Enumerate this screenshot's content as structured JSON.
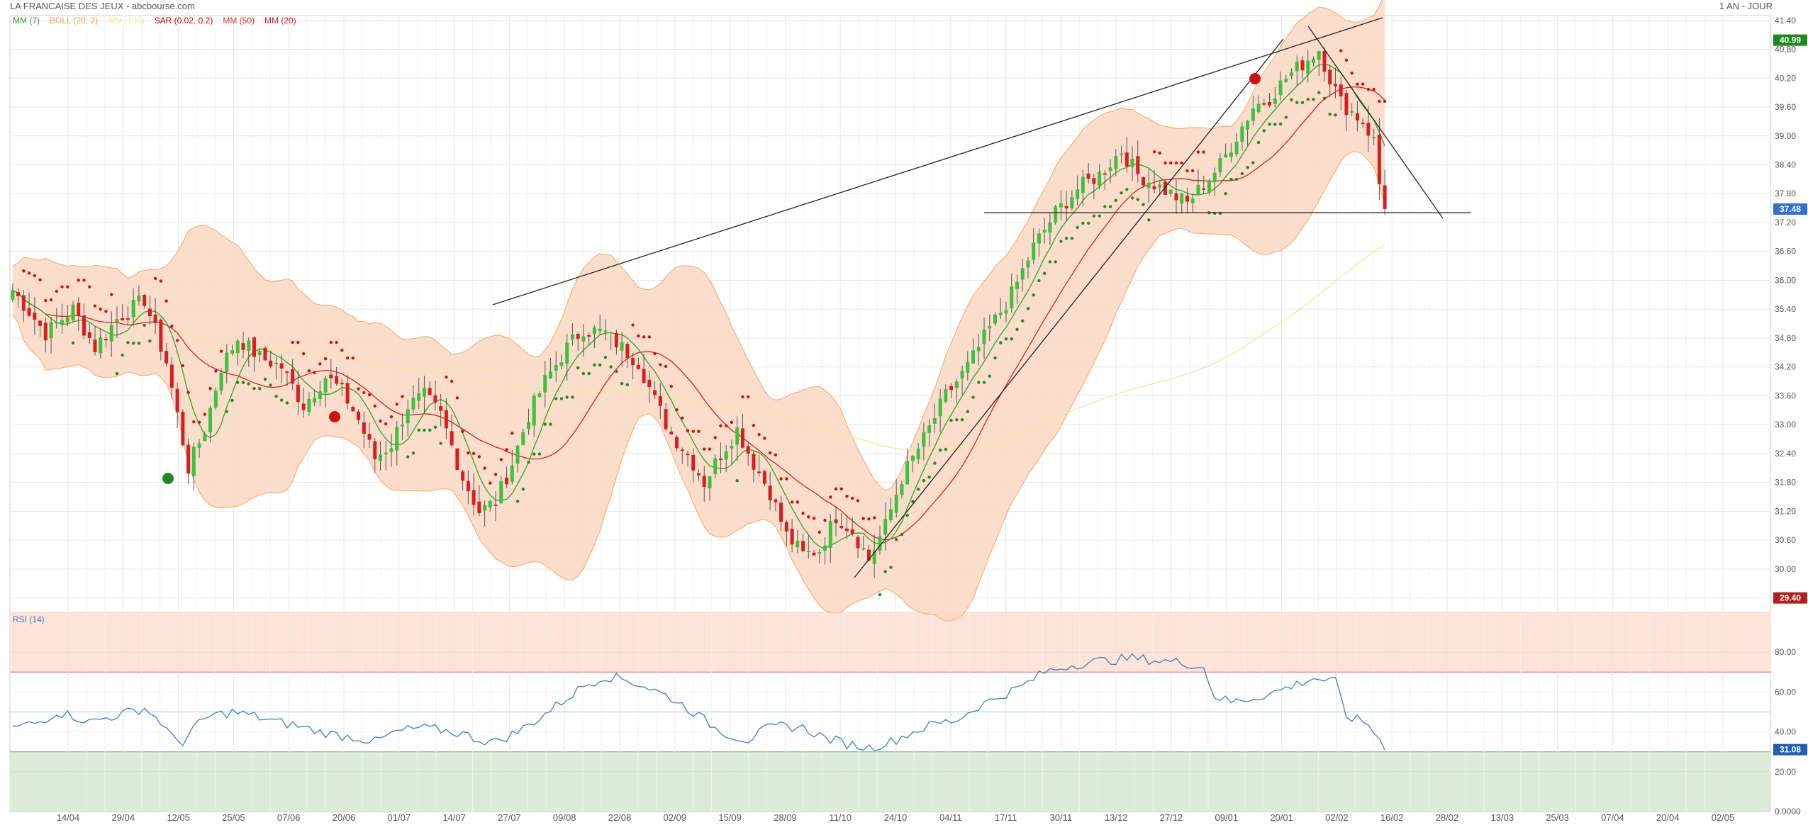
{
  "header": {
    "title": "LA FRANCAISE DES JEUX - abcbourse.com",
    "period": "1 AN - JOUR"
  },
  "legend": [
    {
      "label": "MM (7)",
      "color": "#22aa22"
    },
    {
      "label": "BOLL (20, 2)",
      "color": "#f0a050"
    },
    {
      "label": "MM (100)",
      "color": "#f3e9a0"
    },
    {
      "label": "SAR (0.02, 0.2)",
      "color": "#cc0000"
    },
    {
      "label": "MM (50)",
      "color": "#e03030"
    },
    {
      "label": "MM (20)",
      "color": "#d02020"
    }
  ],
  "colors": {
    "up": "#3cc23c",
    "down": "#d81e1e",
    "boll_fill": "#fbd9c6",
    "boll_line": "#f5a860",
    "rsi_line": "#3b7fc4",
    "rsi_over": "#fde3d8",
    "rsi_under": "#dcecd8"
  },
  "chart_data": {
    "type": "candlestick",
    "yaxis_ticks": [
      "41.40",
      "40.80",
      "40.20",
      "39.60",
      "39.00",
      "38.40",
      "37.80",
      "37.20",
      "36.60",
      "36.00",
      "35.40",
      "34.80",
      "34.20",
      "33.60",
      "33.00",
      "32.40",
      "31.80",
      "31.20",
      "30.60",
      "30.00",
      "29.40"
    ],
    "ylim": [
      29.1,
      41.5
    ],
    "price_badges": [
      {
        "value": "40.99",
        "color": "#1a8a1a"
      },
      {
        "value": "37.48",
        "color": "#2f6fd6"
      },
      {
        "value": "29.40",
        "color": "#b51e1e"
      }
    ],
    "xaxis_ticks": [
      "14/04",
      "29/04",
      "12/05",
      "25/05",
      "07/06",
      "20/06",
      "01/07",
      "14/07",
      "27/07",
      "09/08",
      "22/08",
      "02/09",
      "15/09",
      "28/09",
      "11/10",
      "24/10",
      "04/11",
      "17/11",
      "30/11",
      "13/12",
      "27/12",
      "09/01",
      "20/01",
      "02/02",
      "16/02",
      "28/02",
      "13/03",
      "25/03",
      "07/04",
      "20/04",
      "02/05"
    ],
    "price_anchors": [
      [
        0,
        35.8
      ],
      [
        6,
        34.9
      ],
      [
        11,
        35.4
      ],
      [
        15,
        34.6
      ],
      [
        19,
        35.2
      ],
      [
        24,
        35.6
      ],
      [
        28,
        34.3
      ],
      [
        30,
        33.2
      ],
      [
        32,
        32.1
      ],
      [
        35,
        32.9
      ],
      [
        38,
        34.2
      ],
      [
        41,
        34.8
      ],
      [
        45,
        34.4
      ],
      [
        49,
        34.2
      ],
      [
        53,
        33.4
      ],
      [
        57,
        34.0
      ],
      [
        60,
        33.7
      ],
      [
        63,
        33.1
      ],
      [
        66,
        32.3
      ],
      [
        69,
        32.6
      ],
      [
        72,
        33.4
      ],
      [
        75,
        33.6
      ],
      [
        78,
        33.2
      ],
      [
        82,
        31.9
      ],
      [
        85,
        31.2
      ],
      [
        88,
        31.4
      ],
      [
        91,
        32.2
      ],
      [
        94,
        33.2
      ],
      [
        97,
        33.9
      ],
      [
        101,
        34.6
      ],
      [
        104,
        35.0
      ],
      [
        108,
        34.9
      ],
      [
        111,
        34.6
      ],
      [
        114,
        34.3
      ],
      [
        117,
        33.5
      ],
      [
        120,
        32.8
      ],
      [
        123,
        32.4
      ],
      [
        126,
        31.8
      ],
      [
        129,
        32.4
      ],
      [
        132,
        32.9
      ],
      [
        135,
        32.2
      ],
      [
        138,
        31.6
      ],
      [
        141,
        30.7
      ],
      [
        144,
        30.3
      ],
      [
        147,
        30.4
      ],
      [
        150,
        31.1
      ],
      [
        153,
        30.8
      ],
      [
        156,
        30.2
      ],
      [
        159,
        30.9
      ],
      [
        162,
        31.9
      ],
      [
        166,
        32.7
      ],
      [
        170,
        33.6
      ],
      [
        174,
        34.2
      ],
      [
        178,
        35.0
      ],
      [
        182,
        35.7
      ],
      [
        186,
        36.7
      ],
      [
        190,
        37.4
      ],
      [
        194,
        37.9
      ],
      [
        198,
        38.2
      ],
      [
        202,
        38.7
      ],
      [
        205,
        38.2
      ],
      [
        208,
        38.0
      ],
      [
        211,
        37.8
      ],
      [
        214,
        37.6
      ],
      [
        217,
        38.0
      ],
      [
        220,
        38.4
      ],
      [
        223,
        39.0
      ],
      [
        226,
        39.6
      ],
      [
        229,
        39.8
      ],
      [
        232,
        40.2
      ],
      [
        235,
        40.5
      ],
      [
        238,
        40.8
      ],
      [
        240,
        40.2
      ],
      [
        242,
        39.7
      ],
      [
        244,
        39.5
      ],
      [
        246,
        39.3
      ],
      [
        248,
        38.9
      ],
      [
        249,
        38.0
      ],
      [
        250,
        37.48
      ]
    ],
    "rsi": {
      "title": "RSI (14)",
      "yaxis_ticks": [
        "80.00",
        "60.00",
        "40.00",
        "20.00",
        "0.0000"
      ],
      "ylim": [
        0,
        100
      ],
      "overbought": 70,
      "oversold": 30,
      "last_value": "31.08",
      "anchors": [
        [
          0,
          42
        ],
        [
          5,
          45
        ],
        [
          8,
          50
        ],
        [
          11,
          48
        ],
        [
          14,
          45
        ],
        [
          17,
          47
        ],
        [
          20,
          49
        ],
        [
          24,
          52
        ],
        [
          27,
          45
        ],
        [
          29,
          37
        ],
        [
          31,
          35
        ],
        [
          33,
          42
        ],
        [
          36,
          48
        ],
        [
          40,
          50
        ],
        [
          44,
          48
        ],
        [
          48,
          45
        ],
        [
          52,
          43
        ],
        [
          56,
          40
        ],
        [
          60,
          38
        ],
        [
          63,
          37
        ],
        [
          66,
          35
        ],
        [
          70,
          40
        ],
        [
          74,
          42
        ],
        [
          78,
          41
        ],
        [
          82,
          39
        ],
        [
          85,
          36
        ],
        [
          88,
          35
        ],
        [
          92,
          40
        ],
        [
          96,
          47
        ],
        [
          100,
          55
        ],
        [
          104,
          63
        ],
        [
          108,
          68
        ],
        [
          112,
          66
        ],
        [
          116,
          62
        ],
        [
          120,
          57
        ],
        [
          124,
          50
        ],
        [
          128,
          42
        ],
        [
          131,
          38
        ],
        [
          134,
          36
        ],
        [
          137,
          41
        ],
        [
          140,
          43
        ],
        [
          144,
          42
        ],
        [
          148,
          37
        ],
        [
          152,
          34
        ],
        [
          156,
          32
        ],
        [
          160,
          35
        ],
        [
          164,
          40
        ],
        [
          168,
          44
        ],
        [
          172,
          46
        ],
        [
          176,
          53
        ],
        [
          180,
          58
        ],
        [
          184,
          63
        ],
        [
          188,
          70
        ],
        [
          192,
          73
        ],
        [
          196,
          75
        ],
        [
          200,
          76
        ],
        [
          204,
          77
        ],
        [
          208,
          76
        ],
        [
          212,
          75
        ],
        [
          215,
          74
        ],
        [
          217,
          72
        ],
        [
          219,
          58
        ],
        [
          222,
          55
        ],
        [
          226,
          57
        ],
        [
          230,
          60
        ],
        [
          234,
          64
        ],
        [
          237,
          67
        ],
        [
          239,
          66
        ],
        [
          241,
          65
        ],
        [
          243,
          48
        ],
        [
          245,
          46
        ],
        [
          247,
          44
        ],
        [
          249,
          36
        ],
        [
          250,
          31
        ]
      ]
    }
  }
}
